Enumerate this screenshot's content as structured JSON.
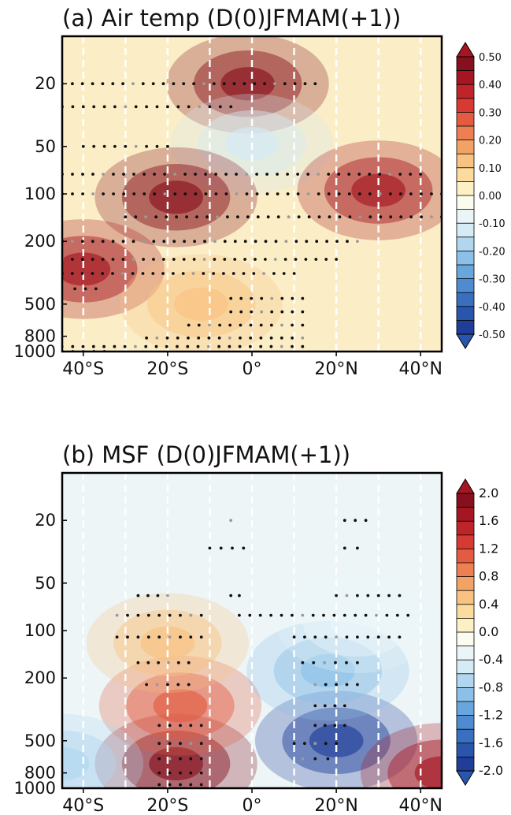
{
  "chart_data": [
    {
      "type": "heatmap",
      "title": "(a) Air temp (D(0)JFMAM(+1))",
      "x_ticks": [
        "40°S",
        "20°S",
        "0°",
        "20°N",
        "40°N"
      ],
      "x_tick_values": [
        -40,
        -20,
        0,
        20,
        40
      ],
      "x_range": [
        -45,
        45
      ],
      "y_ticks": [
        "20",
        "50",
        "100",
        "200",
        "500",
        "800",
        "1000"
      ],
      "y_tick_values": [
        20,
        50,
        100,
        200,
        500,
        800,
        1000
      ],
      "y_range": [
        10,
        1000
      ],
      "y_scale": "log",
      "gridlines_x": [
        -40,
        -30,
        -20,
        -10,
        0,
        10,
        20,
        30,
        40
      ],
      "colorbar": {
        "labels": [
          "0.50",
          "0.40",
          "0.30",
          "0.20",
          "0.10",
          "0.00",
          "-0.10",
          "-0.20",
          "-0.30",
          "-0.40",
          "-0.50"
        ],
        "min": -0.5,
        "max": 0.5,
        "extend": "both"
      },
      "field_features": [
        {
          "lat": -1,
          "lev": 20,
          "value": 0.45
        },
        {
          "lat": 0,
          "lev": 48,
          "value": -0.12
        },
        {
          "lat": -18,
          "lev": 105,
          "value": 0.48
        },
        {
          "lat": 30,
          "lev": 95,
          "value": 0.4
        },
        {
          "lat": -40,
          "lev": 300,
          "value": 0.4
        },
        {
          "lat": -12,
          "lev": 500,
          "value": 0.1
        }
      ],
      "stipple_rows": [
        {
          "lev": 20,
          "lat_from": -45,
          "lat_to": 15
        },
        {
          "lev": 28,
          "lat_from": -45,
          "lat_to": -5
        },
        {
          "lev": 50,
          "lat_from": -40,
          "lat_to": -20
        },
        {
          "lev": 75,
          "lat_from": -45,
          "lat_to": 40
        },
        {
          "lev": 100,
          "lat_from": -45,
          "lat_to": 45
        },
        {
          "lev": 140,
          "lat_from": -30,
          "lat_to": 45
        },
        {
          "lev": 200,
          "lat_from": -45,
          "lat_to": 25
        },
        {
          "lev": 260,
          "lat_from": -45,
          "lat_to": 20
        },
        {
          "lev": 320,
          "lat_from": -45,
          "lat_to": 10
        },
        {
          "lev": 400,
          "lat_from": -42,
          "lat_to": -37
        },
        {
          "lev": 460,
          "lat_from": -5,
          "lat_to": 12
        },
        {
          "lev": 560,
          "lat_from": -5,
          "lat_to": 12
        },
        {
          "lev": 680,
          "lat_from": -15,
          "lat_to": 12
        },
        {
          "lev": 820,
          "lat_from": -25,
          "lat_to": 12
        },
        {
          "lev": 930,
          "lat_from": -45,
          "lat_to": 12
        },
        {
          "lev": 1000,
          "lat_from": -45,
          "lat_to": -35
        }
      ]
    },
    {
      "type": "heatmap",
      "title": "(b) MSF (D(0)JFMAM(+1))",
      "x_ticks": [
        "40°S",
        "20°S",
        "0°",
        "20°N",
        "40°N"
      ],
      "x_tick_values": [
        -40,
        -20,
        0,
        20,
        40
      ],
      "x_range": [
        -45,
        45
      ],
      "y_ticks": [
        "20",
        "50",
        "100",
        "200",
        "500",
        "800",
        "1000"
      ],
      "y_tick_values": [
        20,
        50,
        100,
        200,
        500,
        800,
        1000
      ],
      "y_range": [
        10,
        1000
      ],
      "y_scale": "log",
      "gridlines_x": [
        -40,
        -30,
        -20,
        -10,
        0,
        10,
        20,
        30,
        40
      ],
      "colorbar": {
        "labels": [
          "2.0",
          "1.6",
          "1.2",
          "0.8",
          "0.4",
          "0.0",
          "-0.4",
          "-0.8",
          "-1.2",
          "-1.6",
          "-2.0"
        ],
        "min": -2.0,
        "max": 2.0,
        "extend": "both"
      },
      "field_features": [
        {
          "lat": -18,
          "lev": 700,
          "value": 2.0
        },
        {
          "lat": -17,
          "lev": 300,
          "value": 1.1
        },
        {
          "lat": -20,
          "lev": 120,
          "value": 0.4
        },
        {
          "lat": 20,
          "lev": 500,
          "value": -2.0
        },
        {
          "lat": 18,
          "lev": 180,
          "value": -1.0
        },
        {
          "lat": 25,
          "lev": 90,
          "value": -0.4
        },
        {
          "lat": 45,
          "lev": 800,
          "value": 1.6
        },
        {
          "lat": -45,
          "lev": 700,
          "value": -0.8
        }
      ],
      "stipple_rows": [
        {
          "lev": 20,
          "lat_from": -5,
          "lat_to": -5
        },
        {
          "lev": 20,
          "lat_from": 22,
          "lat_to": 27
        },
        {
          "lev": 30,
          "lat_from": -10,
          "lat_to": -2
        },
        {
          "lev": 30,
          "lat_from": 22,
          "lat_to": 25
        },
        {
          "lev": 60,
          "lat_from": -27,
          "lat_to": -20
        },
        {
          "lev": 60,
          "lat_from": -5,
          "lat_to": -3
        },
        {
          "lev": 60,
          "lat_from": 20,
          "lat_to": 35
        },
        {
          "lev": 80,
          "lat_from": -32,
          "lat_to": -12
        },
        {
          "lev": 80,
          "lat_from": -3,
          "lat_to": 37
        },
        {
          "lev": 110,
          "lat_from": -32,
          "lat_to": -12
        },
        {
          "lev": 110,
          "lat_from": 10,
          "lat_to": 35
        },
        {
          "lev": 160,
          "lat_from": -27,
          "lat_to": -15
        },
        {
          "lev": 160,
          "lat_from": 12,
          "lat_to": 25
        },
        {
          "lev": 220,
          "lat_from": -25,
          "lat_to": -15
        },
        {
          "lev": 220,
          "lat_from": 15,
          "lat_to": 25
        },
        {
          "lev": 300,
          "lat_from": 15,
          "lat_to": 22
        },
        {
          "lev": 400,
          "lat_from": -22,
          "lat_to": -12
        },
        {
          "lev": 400,
          "lat_from": 15,
          "lat_to": 22
        },
        {
          "lev": 520,
          "lat_from": -22,
          "lat_to": -12
        },
        {
          "lev": 520,
          "lat_from": 10,
          "lat_to": 20
        },
        {
          "lev": 650,
          "lat_from": -22,
          "lat_to": -12
        },
        {
          "lev": 650,
          "lat_from": 12,
          "lat_to": 18
        },
        {
          "lev": 800,
          "lat_from": -22,
          "lat_to": -12
        },
        {
          "lev": 950,
          "lat_from": -22,
          "lat_to": -12
        }
      ]
    }
  ]
}
